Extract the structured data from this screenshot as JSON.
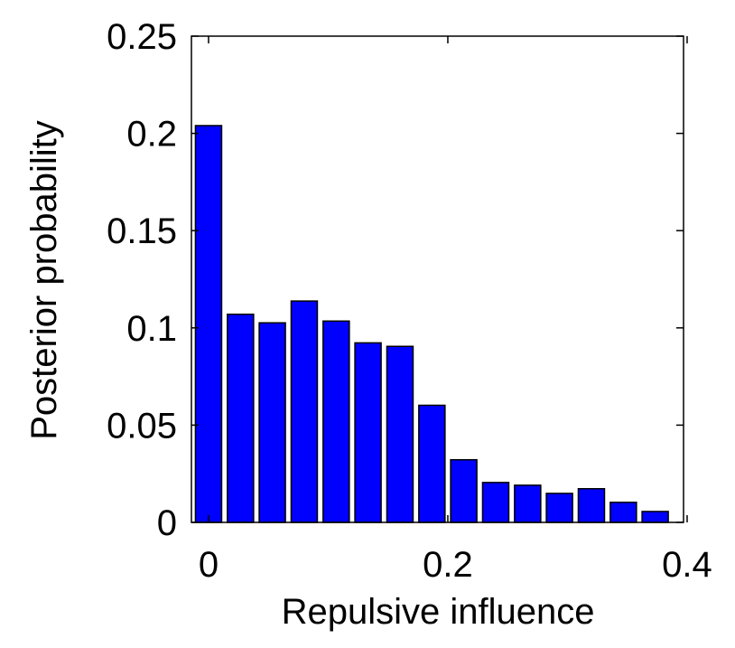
{
  "chart_data": {
    "type": "bar",
    "x": [
      0,
      0.0267,
      0.0533,
      0.08,
      0.1067,
      0.1333,
      0.16,
      0.1867,
      0.2133,
      0.24,
      0.2667,
      0.2933,
      0.32,
      0.3467,
      0.3733
    ],
    "values": [
      0.204,
      0.107,
      0.1026,
      0.1138,
      0.1035,
      0.0923,
      0.0905,
      0.0602,
      0.0322,
      0.0205,
      0.0191,
      0.0149,
      0.0173,
      0.0103,
      0.0056
    ],
    "color": "#0000ff",
    "xlabel": "Repulsive influence",
    "ylabel": "Posterior probability",
    "xlim": [
      -0.0143,
      0.397
    ],
    "ylim": [
      0,
      0.25
    ],
    "xticks": [
      0,
      0.2,
      0.4
    ],
    "yticks": [
      0,
      0.05,
      0.1,
      0.15,
      0.2,
      0.25
    ],
    "grid": false
  }
}
